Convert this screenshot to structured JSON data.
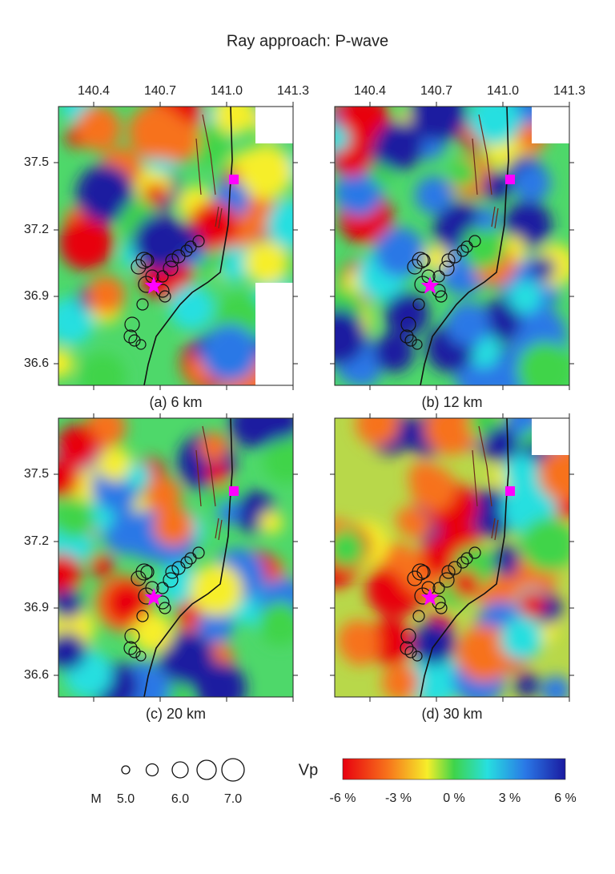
{
  "title": "Ray approach: P-wave",
  "panels": [
    {
      "label": "(a) 6 km"
    },
    {
      "label": "(b) 12 km"
    },
    {
      "label": "(c) 20 km"
    },
    {
      "label": "(d) 30 km"
    }
  ],
  "lon_ticks": [
    "140.4",
    "140.7",
    "141.0",
    "141.3"
  ],
  "lat_ticks": [
    "37.5",
    "37.2",
    "36.9",
    "36.6"
  ],
  "magnitude_legend": {
    "label": "M",
    "ticks": [
      "5.0",
      "6.0",
      "7.0"
    ]
  },
  "colorbar": {
    "label": "Vp",
    "ticks": [
      "-6 %",
      "-3 %",
      "0 %",
      "3 %",
      "6 %"
    ]
  }
}
